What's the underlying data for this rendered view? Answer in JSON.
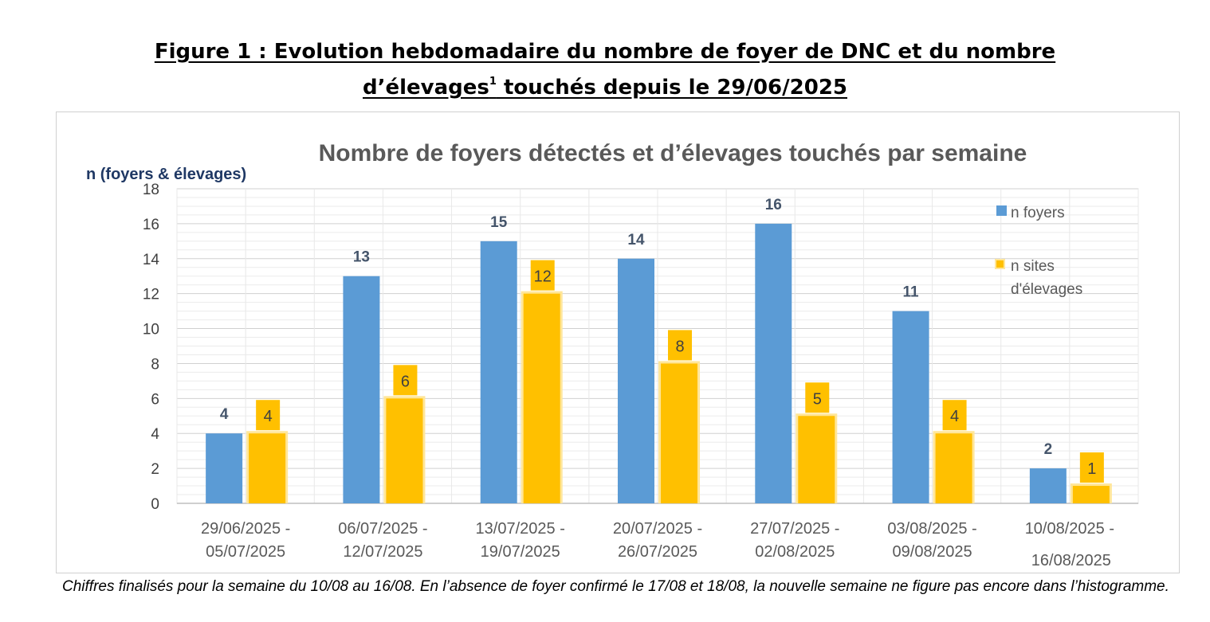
{
  "figure": {
    "title_line1": "Figure 1 : Evolution hebdomadaire du nombre de foyer de DNC et du nombre",
    "title_line2_prefix": "d’élevages",
    "title_line2_sup": "1",
    "title_line2_suffix": " touchés depuis le 29/06/2025"
  },
  "caption": "Chiffres finalisés pour la semaine du 10/08 au 16/08. En l’absence de foyer confirmé le 17/08 et 18/08, la nouvelle semaine ne figure pas encore dans l’histogramme.",
  "chart_data": {
    "type": "bar",
    "title": "Nombre de foyers détectés et d’élevages touchés par semaine",
    "ylabel": "n (foyers & élevages)",
    "xlabel": "",
    "ylim": [
      0,
      18
    ],
    "yticks": [
      0,
      2,
      4,
      6,
      8,
      10,
      12,
      14,
      16,
      18
    ],
    "grid": true,
    "legend_position": "top-right",
    "categories": [
      [
        "29/06/2025 -",
        "05/07/2025"
      ],
      [
        "06/07/2025 -",
        "12/07/2025"
      ],
      [
        "13/07/2025 -",
        "19/07/2025"
      ],
      [
        "20/07/2025 -",
        "26/07/2025"
      ],
      [
        "27/07/2025 -",
        "02/08/2025"
      ],
      [
        "03/08/2025 -",
        "09/08/2025"
      ],
      [
        "10/08/2025 -",
        "16/08/2025"
      ]
    ],
    "series": [
      {
        "name": "n foyers",
        "color": "#5b9bd5",
        "values": [
          4,
          13,
          15,
          14,
          16,
          11,
          2
        ]
      },
      {
        "name": "n sites d'élevages",
        "legend_lines": [
          "n sites",
          "d'élevages"
        ],
        "color": "#ffc000",
        "values": [
          4,
          6,
          12,
          8,
          5,
          4,
          1
        ]
      }
    ]
  }
}
